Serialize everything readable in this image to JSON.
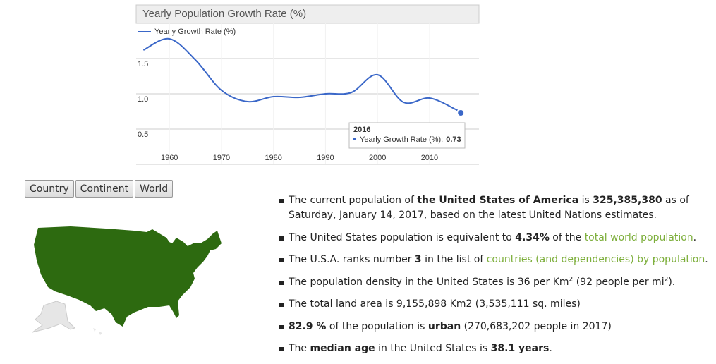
{
  "chart_data": {
    "type": "line",
    "title": "Yearly Population Growth Rate (%)",
    "x": [
      1955,
      1960,
      1965,
      1970,
      1975,
      1980,
      1985,
      1990,
      1995,
      2000,
      2005,
      2010,
      2015,
      2016
    ],
    "series": [
      {
        "name": "Yearly Growth Rate (%)",
        "color": "#3a67c8",
        "values": [
          1.62,
          1.78,
          1.48,
          1.05,
          0.89,
          0.96,
          0.95,
          1.0,
          1.02,
          1.27,
          0.88,
          0.94,
          0.78,
          0.73
        ]
      }
    ],
    "xlim": [
      1953.6,
      2019.5
    ],
    "xticks": [
      1960,
      1970,
      1980,
      1990,
      2000,
      2010
    ],
    "ylim": [
      0,
      2
    ],
    "yticks": [
      0.5,
      {
        "value": 1,
        "label": "1.0"
      },
      1.5
    ],
    "grid": true,
    "legend": "top-left",
    "tooltip": {
      "title": "2016",
      "label": "Yearly Growth Rate (%):",
      "value": 0.73
    }
  },
  "buttons": [
    "Country",
    "Continent",
    "World"
  ],
  "bullets": [
    [
      {
        "text": "The current population of "
      },
      {
        "text": "the United States of America",
        "style": "b"
      },
      {
        "text": " is "
      },
      {
        "text": "325,385,380",
        "style": "b"
      },
      {
        "text": " as of Saturday, January 14, 2017, based on the latest United Nations estimates."
      }
    ],
    [
      {
        "text": "The United States population is equivalent to "
      },
      {
        "text": "4.34%",
        "style": "b"
      },
      {
        "text": " of the "
      },
      {
        "text": "total world population",
        "style": "a"
      },
      {
        "text": "."
      }
    ],
    [
      {
        "text": "The U.S.A. ranks number "
      },
      {
        "text": "3",
        "style": "b"
      },
      {
        "text": " in the list of "
      },
      {
        "text": "countries (and dependencies) by population",
        "style": "a"
      },
      {
        "text": "."
      }
    ],
    [
      {
        "text": "The population density in the United States is 36 per Km"
      },
      {
        "text": "2",
        "style": "sup"
      },
      {
        "text": " (92 people per mi"
      },
      {
        "text": "2",
        "style": "sup"
      },
      {
        "text": ")."
      }
    ],
    [
      {
        "text": "The total land area is 9,155,898 Km2 (3,535,111 sq. miles)"
      }
    ],
    [
      {
        "text": "82.9 %",
        "style": "b"
      },
      {
        "text": " of the population is "
      },
      {
        "text": "urban",
        "style": "b"
      },
      {
        "text": " (270,683,202 people in 2017)"
      }
    ],
    [
      {
        "text": "The "
      },
      {
        "text": "median age",
        "style": "b"
      },
      {
        "text": " in the United States is "
      },
      {
        "text": "38.1 years",
        "style": "b"
      },
      {
        "text": "."
      }
    ]
  ]
}
